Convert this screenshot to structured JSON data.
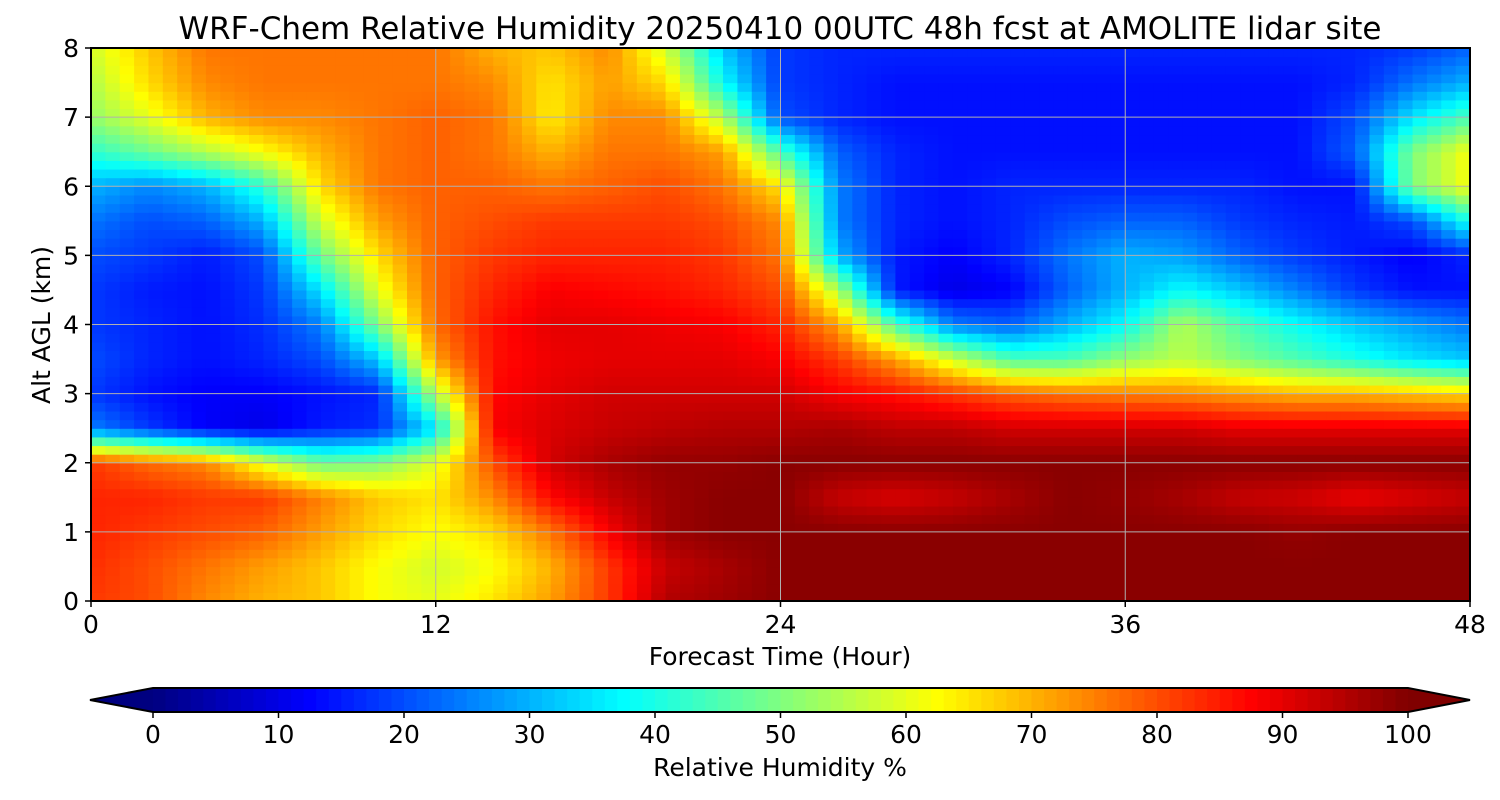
{
  "chart_data": {
    "type": "heatmap",
    "title": "WRF-Chem Relative Humidity 20250410 00UTC 48h fcst at AMOLITE lidar site",
    "xlabel": "Forecast Time (Hour)",
    "ylabel": "Alt AGL (km)",
    "xlim": [
      0,
      48
    ],
    "ylim": [
      0,
      8
    ],
    "xticks": [
      0,
      12,
      24,
      36,
      48
    ],
    "yticks": [
      0,
      1,
      2,
      3,
      4,
      5,
      6,
      7,
      8
    ],
    "grid": true,
    "colormap": "jet",
    "colorbar": {
      "label": "Relative Humidity %",
      "range": [
        0,
        100
      ],
      "ticks": [
        0,
        10,
        20,
        30,
        40,
        50,
        60,
        70,
        80,
        90,
        100
      ],
      "orientation": "horizontal",
      "extend": "both"
    },
    "x": [
      0,
      2,
      4,
      6,
      8,
      10,
      12,
      14,
      16,
      18,
      20,
      22,
      24,
      26,
      28,
      30,
      32,
      34,
      36,
      38,
      40,
      42,
      44,
      46,
      48
    ],
    "y": [
      0,
      0.5,
      1,
      1.5,
      2,
      2.5,
      3,
      3.5,
      4,
      4.5,
      5,
      5.5,
      6,
      6.5,
      7,
      7.5,
      8
    ],
    "z": [
      [
        82,
        80,
        74,
        70,
        68,
        62,
        60,
        65,
        72,
        82,
        95,
        97,
        99,
        99,
        99,
        99,
        99,
        99,
        99,
        99,
        99,
        99,
        99,
        99,
        99
      ],
      [
        83,
        80,
        76,
        72,
        68,
        62,
        58,
        62,
        70,
        82,
        93,
        96,
        99,
        99,
        99,
        99,
        99,
        99,
        99,
        99,
        99,
        99,
        99,
        99,
        99
      ],
      [
        84,
        82,
        80,
        78,
        72,
        66,
        62,
        66,
        76,
        88,
        97,
        99,
        99,
        99,
        99,
        99,
        99,
        99,
        99,
        99,
        99,
        98,
        99,
        99,
        99
      ],
      [
        84,
        84,
        82,
        82,
        75,
        68,
        65,
        74,
        87,
        93,
        97,
        99,
        99,
        93,
        91,
        93,
        96,
        99,
        98,
        96,
        93,
        92,
        89,
        91,
        93
      ],
      [
        82,
        77,
        74,
        60,
        48,
        50,
        60,
        80,
        92,
        96,
        98,
        98,
        99,
        99,
        99,
        99,
        99,
        99,
        99,
        99,
        99,
        99,
        99,
        99,
        99
      ],
      [
        25,
        18,
        12,
        10,
        15,
        17,
        35,
        88,
        91,
        93,
        94,
        95,
        95,
        96,
        94,
        94,
        92,
        92,
        92,
        92,
        90,
        90,
        90,
        90,
        90
      ],
      [
        18,
        14,
        12,
        12,
        14,
        16,
        55,
        87,
        90,
        92,
        92,
        92,
        92,
        88,
        86,
        82,
        78,
        76,
        75,
        74,
        72,
        70,
        70,
        68,
        66
      ],
      [
        20,
        16,
        14,
        16,
        20,
        32,
        72,
        86,
        89,
        90,
        90,
        90,
        88,
        82,
        72,
        58,
        45,
        45,
        52,
        56,
        50,
        45,
        40,
        35,
        32
      ],
      [
        18,
        16,
        14,
        17,
        25,
        50,
        77,
        86,
        90,
        90,
        89,
        88,
        84,
        72,
        45,
        25,
        22,
        30,
        38,
        55,
        45,
        38,
        32,
        28,
        24
      ],
      [
        18,
        15,
        14,
        18,
        35,
        60,
        78,
        84,
        88,
        87,
        86,
        84,
        80,
        55,
        15,
        10,
        12,
        22,
        30,
        38,
        32,
        25,
        18,
        14,
        14
      ],
      [
        20,
        18,
        15,
        20,
        48,
        66,
        78,
        82,
        84,
        84,
        84,
        82,
        76,
        30,
        15,
        12,
        16,
        24,
        30,
        28,
        22,
        18,
        15,
        12,
        16
      ],
      [
        24,
        20,
        22,
        30,
        58,
        72,
        78,
        80,
        82,
        82,
        82,
        80,
        74,
        25,
        16,
        14,
        16,
        20,
        22,
        22,
        18,
        16,
        15,
        20,
        40
      ],
      [
        30,
        26,
        30,
        42,
        66,
        76,
        78,
        78,
        76,
        78,
        80,
        76,
        65,
        25,
        16,
        14,
        16,
        16,
        16,
        16,
        16,
        14,
        14,
        50,
        62
      ],
      [
        42,
        48,
        55,
        62,
        70,
        76,
        78,
        76,
        70,
        76,
        76,
        72,
        45,
        22,
        16,
        14,
        14,
        14,
        14,
        14,
        14,
        14,
        22,
        50,
        62
      ],
      [
        52,
        60,
        70,
        74,
        74,
        76,
        78,
        76,
        64,
        74,
        74,
        55,
        20,
        16,
        14,
        14,
        14,
        14,
        14,
        14,
        14,
        14,
        20,
        35,
        45
      ],
      [
        55,
        66,
        74,
        76,
        76,
        76,
        76,
        74,
        65,
        72,
        66,
        38,
        18,
        16,
        14,
        14,
        14,
        14,
        14,
        14,
        14,
        14,
        16,
        24,
        30
      ],
      [
        58,
        68,
        76,
        76,
        76,
        76,
        76,
        70,
        68,
        74,
        58,
        32,
        18,
        16,
        16,
        16,
        16,
        16,
        16,
        16,
        16,
        16,
        16,
        18,
        22
      ]
    ]
  }
}
